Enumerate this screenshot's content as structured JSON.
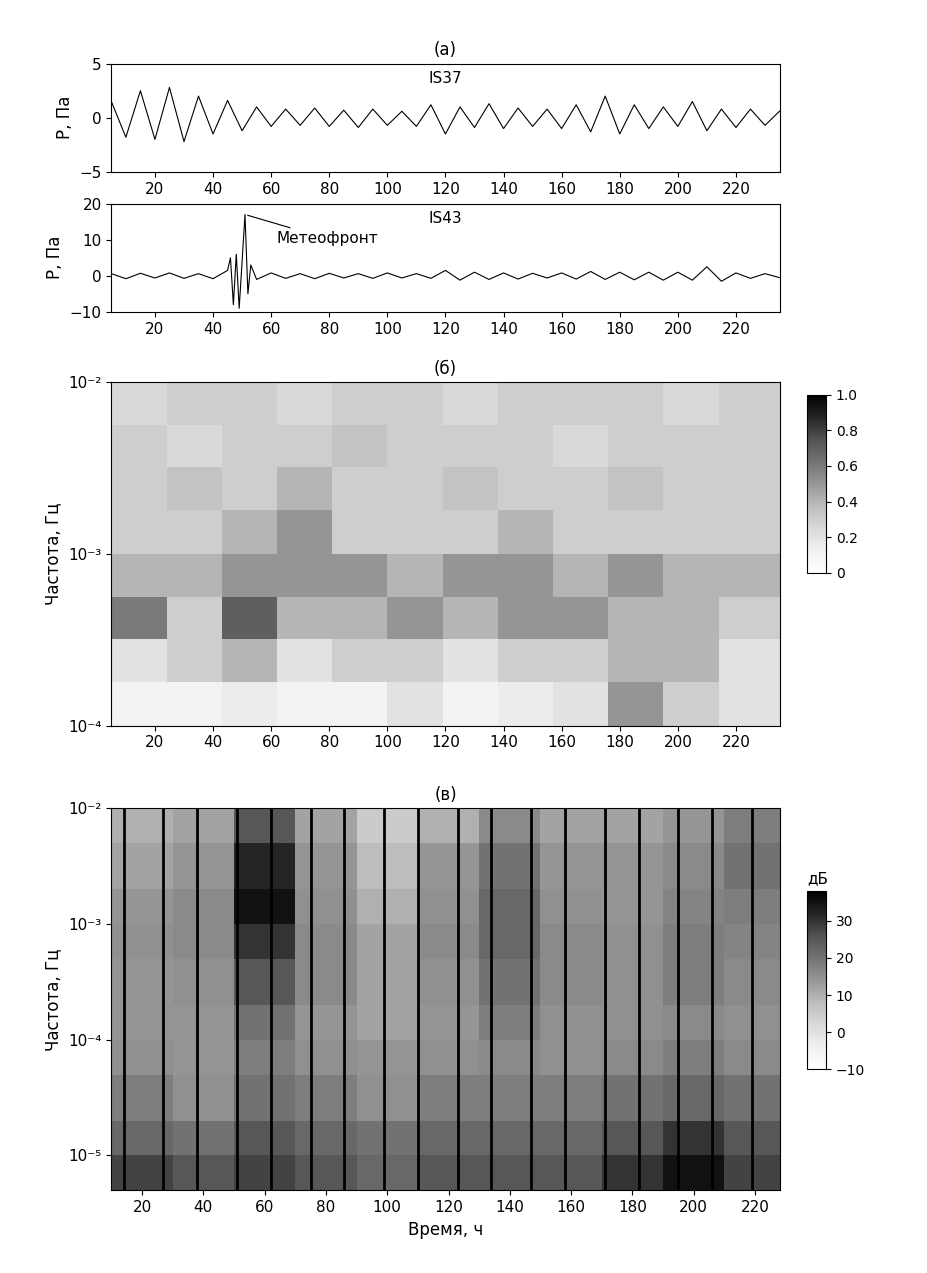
{
  "chart_data": [
    {
      "type": "line",
      "title": "(а)",
      "ylabel": "P, Па",
      "xlim": [
        5,
        235
      ],
      "xticks": [
        20,
        40,
        60,
        80,
        100,
        120,
        140,
        160,
        180,
        200,
        220
      ],
      "ylim": [
        -5,
        5
      ],
      "yticks": [
        {
          "value": -5,
          "label": "−5"
        },
        0,
        5
      ],
      "x": [
        5,
        10,
        15,
        20,
        25,
        30,
        35,
        40,
        45,
        50,
        55,
        60,
        65,
        70,
        75,
        80,
        85,
        90,
        95,
        100,
        105,
        110,
        115,
        120,
        125,
        130,
        135,
        140,
        145,
        150,
        155,
        160,
        165,
        170,
        175,
        180,
        185,
        190,
        195,
        200,
        205,
        210,
        215,
        220,
        225,
        230,
        235
      ],
      "series": [
        {
          "name": "IS37",
          "color": "#000000",
          "values": [
            1.5,
            -1.8,
            2.5,
            -2.0,
            2.8,
            -2.2,
            2.0,
            -1.5,
            1.6,
            -1.2,
            1.0,
            -0.8,
            0.8,
            -0.7,
            0.9,
            -0.8,
            0.7,
            -0.9,
            0.8,
            -0.7,
            0.6,
            -0.8,
            1.2,
            -1.5,
            1.0,
            -0.9,
            1.3,
            -1.0,
            0.9,
            -0.8,
            0.8,
            -1.0,
            1.2,
            -1.3,
            2.0,
            -1.5,
            1.2,
            -1.0,
            1.0,
            -0.8,
            1.5,
            -1.2,
            0.8,
            -0.9,
            0.8,
            -0.7,
            0.6
          ]
        }
      ]
    },
    {
      "type": "line",
      "ylabel": "P, Па",
      "xlim": [
        5,
        235
      ],
      "xticks": [
        20,
        40,
        60,
        80,
        100,
        120,
        140,
        160,
        180,
        200,
        220
      ],
      "ylim": [
        -10,
        20
      ],
      "yticks": [
        {
          "value": -10,
          "label": "−10"
        },
        0,
        10,
        20
      ],
      "x": [
        5,
        10,
        15,
        20,
        25,
        30,
        35,
        40,
        45,
        46,
        47,
        48,
        49,
        50,
        51,
        52,
        53,
        55,
        60,
        65,
        70,
        75,
        80,
        85,
        90,
        95,
        100,
        105,
        110,
        115,
        120,
        125,
        130,
        135,
        140,
        145,
        150,
        155,
        160,
        165,
        170,
        175,
        180,
        185,
        190,
        195,
        200,
        205,
        210,
        215,
        220,
        225,
        230,
        235
      ],
      "series": [
        {
          "name": "IS43",
          "color": "#000000",
          "values": [
            0.6,
            -0.8,
            0.7,
            -0.6,
            0.8,
            -0.7,
            0.6,
            -0.8,
            1.5,
            5,
            -8,
            6,
            -9,
            4,
            17,
            -5,
            3,
            -1,
            0.8,
            -0.7,
            0.6,
            -0.8,
            0.7,
            -0.6,
            0.6,
            -0.7,
            0.8,
            -0.6,
            0.6,
            -0.7,
            1.5,
            -1.2,
            1.0,
            -1.0,
            0.8,
            -0.9,
            0.7,
            -0.6,
            0.8,
            -0.9,
            1.2,
            -1.0,
            1.0,
            -1.1,
            1.0,
            -1.2,
            1.0,
            -1.2,
            2.5,
            -1.5,
            0.8,
            -0.7,
            0.6,
            -0.5
          ]
        }
      ],
      "annotations": [
        {
          "text": "Метеофронт",
          "x": 51,
          "y": 17,
          "text_x": 62,
          "text_y": 9
        }
      ]
    },
    {
      "type": "heatmap",
      "title": "(б)",
      "ylabel": "Частота, Гц",
      "log": "y",
      "xlim": [
        5,
        235
      ],
      "xticks": [
        20,
        40,
        60,
        80,
        100,
        120,
        140,
        160,
        180,
        200,
        220
      ],
      "ylim": [
        0.0001,
        0.01
      ],
      "yticks": [
        {
          "value": 0.0001,
          "label": "10⁻⁴"
        },
        {
          "value": 0.001,
          "label": "10⁻³"
        },
        {
          "value": 0.01,
          "label": "10⁻²"
        }
      ],
      "x_edges": [
        5,
        24,
        43,
        62,
        81,
        100,
        119,
        138,
        157,
        176,
        195,
        214,
        235
      ],
      "y_edges": [
        0.0001,
        0.00018,
        0.00032,
        0.00056,
        0.001,
        0.0018,
        0.0032,
        0.0056,
        0.01
      ],
      "cells": [
        [
          0.1,
          0.1,
          0.15,
          0.1,
          0.1,
          0.2,
          0.1,
          0.15,
          0.2,
          0.5,
          0.3,
          0.2
        ],
        [
          0.2,
          0.3,
          0.4,
          0.2,
          0.3,
          0.3,
          0.2,
          0.3,
          0.3,
          0.4,
          0.4,
          0.2
        ],
        [
          0.6,
          0.3,
          0.7,
          0.4,
          0.4,
          0.5,
          0.4,
          0.5,
          0.5,
          0.4,
          0.4,
          0.3
        ],
        [
          0.4,
          0.4,
          0.5,
          0.5,
          0.5,
          0.4,
          0.5,
          0.5,
          0.4,
          0.5,
          0.4,
          0.4
        ],
        [
          0.3,
          0.3,
          0.4,
          0.5,
          0.3,
          0.3,
          0.3,
          0.4,
          0.3,
          0.3,
          0.3,
          0.3
        ],
        [
          0.3,
          0.35,
          0.3,
          0.4,
          0.3,
          0.3,
          0.35,
          0.3,
          0.3,
          0.35,
          0.3,
          0.3
        ],
        [
          0.3,
          0.25,
          0.3,
          0.3,
          0.35,
          0.3,
          0.3,
          0.3,
          0.25,
          0.3,
          0.3,
          0.3
        ],
        [
          0.25,
          0.3,
          0.3,
          0.25,
          0.3,
          0.3,
          0.25,
          0.3,
          0.3,
          0.3,
          0.25,
          0.3
        ]
      ],
      "colorbar_range": [
        0,
        1
      ],
      "colorbar_ticks": [
        0,
        0.2,
        0.4,
        0.6,
        0.8,
        {
          "value": 1.0,
          "label": "1.0"
        }
      ]
    },
    {
      "type": "heatmap",
      "title": "(в)",
      "xlabel": "Время, ч",
      "ylabel": "Частота, Гц",
      "log": "y",
      "xlim": [
        10,
        228
      ],
      "xticks": [
        20,
        40,
        60,
        80,
        100,
        120,
        140,
        160,
        180,
        200,
        220
      ],
      "ylim": [
        5e-06,
        0.01
      ],
      "yticks": [
        {
          "value": 1e-05,
          "label": "10⁻⁵"
        },
        {
          "value": 0.0001,
          "label": "10⁻⁴"
        },
        {
          "value": 0.001,
          "label": "10⁻³"
        },
        {
          "value": 0.01,
          "label": "10⁻²"
        }
      ],
      "x_edges": [
        10,
        30,
        50,
        70,
        90,
        110,
        130,
        150,
        170,
        190,
        210,
        228
      ],
      "y_edges": [
        5e-06,
        1e-05,
        2e-05,
        5e-05,
        0.0001,
        0.0002,
        0.0005,
        0.001,
        0.002,
        0.005,
        0.01
      ],
      "cells": [
        [
          28,
          25,
          28,
          25,
          22,
          25,
          25,
          25,
          30,
          35,
          28
        ],
        [
          22,
          20,
          25,
          22,
          20,
          22,
          22,
          22,
          25,
          30,
          25
        ],
        [
          18,
          15,
          20,
          18,
          15,
          18,
          18,
          18,
          20,
          22,
          20
        ],
        [
          15,
          14,
          18,
          15,
          14,
          15,
          16,
          15,
          16,
          18,
          16
        ],
        [
          14,
          14,
          20,
          14,
          12,
          14,
          18,
          15,
          15,
          16,
          15
        ],
        [
          14,
          15,
          25,
          16,
          12,
          15,
          20,
          16,
          15,
          18,
          16
        ],
        [
          15,
          16,
          30,
          16,
          12,
          16,
          22,
          16,
          15,
          18,
          17
        ],
        [
          14,
          16,
          35,
          15,
          10,
          15,
          22,
          15,
          14,
          17,
          18
        ],
        [
          12,
          14,
          32,
          14,
          8,
          14,
          20,
          14,
          14,
          16,
          20
        ],
        [
          10,
          12,
          25,
          12,
          5,
          10,
          16,
          12,
          12,
          14,
          18
        ]
      ],
      "colorbar_range": [
        -10,
        38
      ],
      "colorbar_ticks": [
        {
          "value": -10,
          "label": "−10"
        },
        0,
        10,
        20,
        30
      ],
      "colorbar_label": "дБ",
      "vertical_lines": [
        14,
        27,
        38,
        51,
        62,
        75,
        86,
        99,
        110,
        123,
        134,
        147,
        158,
        171,
        182,
        195,
        206,
        219
      ]
    }
  ]
}
